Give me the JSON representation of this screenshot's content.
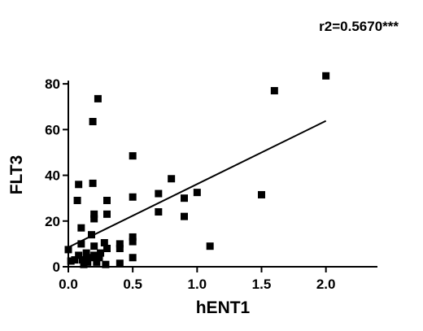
{
  "chart_data": {
    "type": "scatter",
    "title": "",
    "annotation": "r2=0.5670***",
    "xlabel": "hENT1",
    "ylabel": "FLT3",
    "xlim": [
      0,
      2.4
    ],
    "ylim": [
      0,
      90
    ],
    "xticks": [
      0.0,
      0.5,
      1.0,
      1.5,
      2.0
    ],
    "xtick_labels": [
      "0.0",
      "0.5",
      "1.0",
      "1.5",
      "2.0"
    ],
    "yticks": [
      0,
      20,
      40,
      60,
      80
    ],
    "ytick_labels": [
      "0",
      "20",
      "40",
      "60",
      "80"
    ],
    "grid": false,
    "marker": "square",
    "marker_color": "#000000",
    "line_color": "#000000",
    "series": [
      {
        "x": [
          0.0,
          0.02,
          0.05,
          0.07,
          0.08,
          0.08,
          0.1,
          0.1,
          0.11,
          0.12,
          0.13,
          0.14,
          0.15,
          0.17,
          0.18,
          0.19,
          0.19,
          0.2,
          0.2,
          0.2,
          0.2,
          0.22,
          0.23,
          0.24,
          0.25,
          0.28,
          0.29,
          0.3,
          0.3,
          0.3,
          0.4,
          0.4,
          0.4,
          0.5,
          0.5,
          0.5,
          0.5,
          0.5,
          0.7,
          0.7,
          0.8,
          0.9,
          0.9,
          1.0,
          1.1,
          1.5,
          1.6,
          2.0
        ],
        "y": [
          7.5,
          2.5,
          3,
          29,
          36,
          5,
          17,
          10,
          3,
          1,
          3,
          6,
          2,
          4,
          14,
          36.5,
          63.5,
          21,
          23,
          9,
          5,
          2,
          73.5,
          4,
          6,
          10.5,
          1,
          29,
          23,
          8,
          8,
          10,
          1.5,
          48.5,
          30.5,
          13,
          11,
          4,
          32,
          24,
          38.5,
          22,
          30,
          32.5,
          9,
          31.5,
          77,
          83.5
        ]
      }
    ],
    "regression": {
      "x": [
        0.0,
        2.0
      ],
      "y": [
        8.5,
        63.8
      ]
    }
  }
}
